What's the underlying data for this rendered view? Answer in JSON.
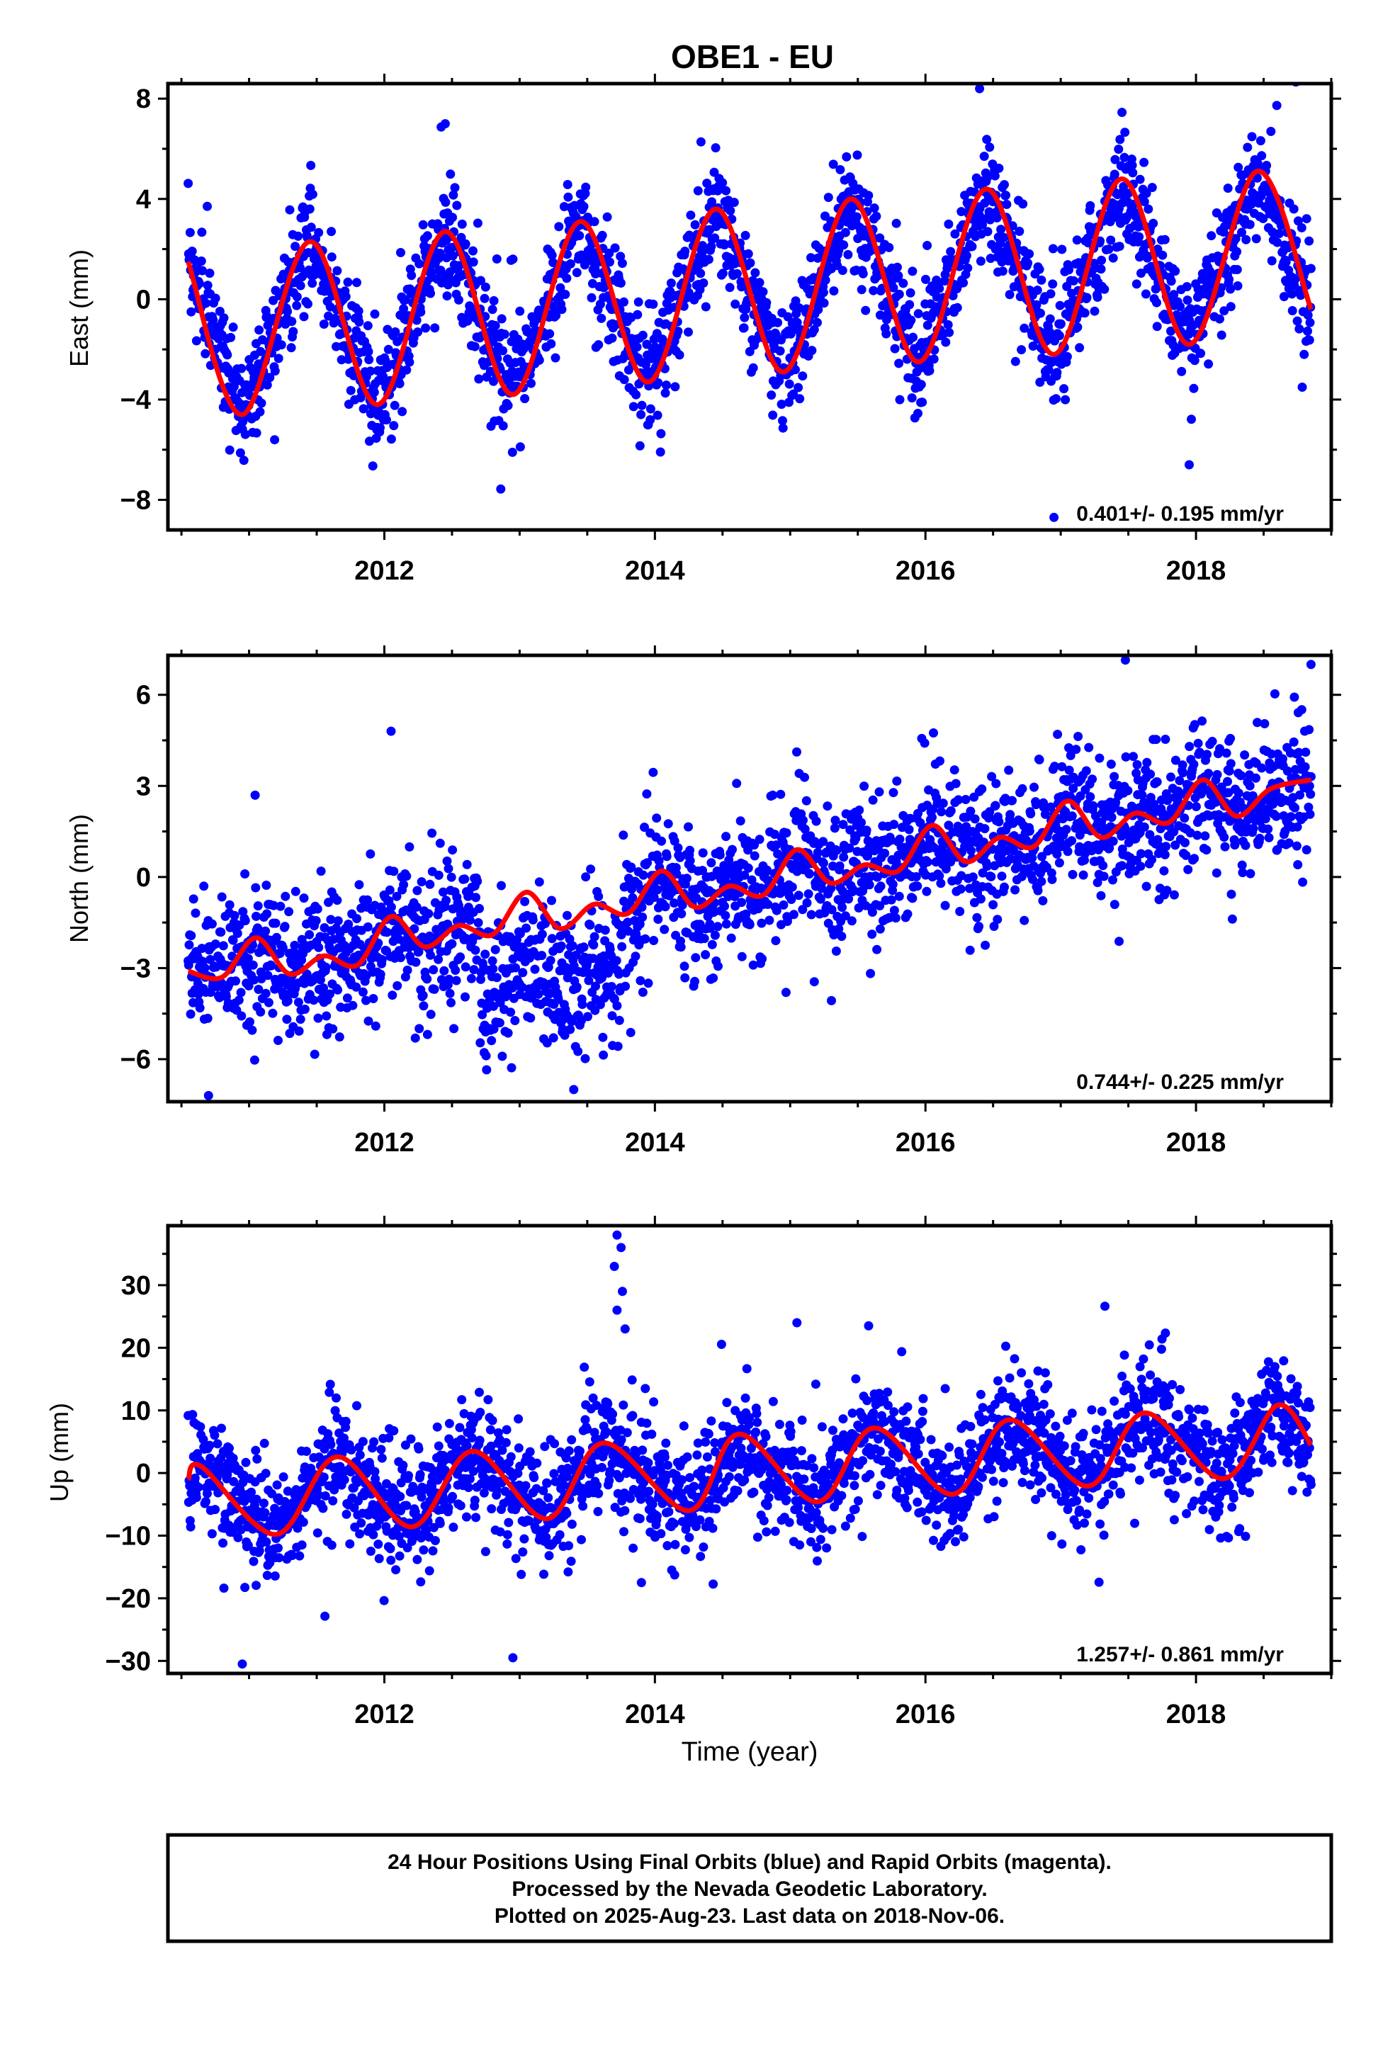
{
  "title": "OBE1 - EU",
  "xlabel": "Time (year)",
  "caption": {
    "line1": "24 Hour Positions Using Final Orbits (blue) and Rapid Orbits (magenta).",
    "line2": "Processed by the Nevada Geodetic Laboratory.",
    "line3": "Plotted on 2025-Aug-23. Last data on 2018-Nov-06."
  },
  "colors": {
    "points": "#0000ff",
    "fit": "#ff0000",
    "frame": "#000000"
  },
  "chart_data": [
    {
      "type": "scatter",
      "ylabel": "East (mm)",
      "xlim": [
        2010.4,
        2019.0
      ],
      "ylim": [
        -9.2,
        8.6
      ],
      "xticks": [
        2012,
        2014,
        2016,
        2018
      ],
      "yticks": [
        -8,
        -4,
        0,
        4,
        8
      ],
      "rate_text": "0.401+/- 0.195 mm/yr",
      "data_range": [
        2010.55,
        2018.85
      ],
      "model": {
        "offset": -1.2,
        "trend_mm_per_yr": 0.401,
        "annual_amp": 3.6,
        "annual_phase": 2011.42,
        "noise": 1.1
      },
      "fit": {
        "x": [
          2010.55,
          2010.95,
          2011.45,
          2011.95,
          2012.45,
          2012.95,
          2013.45,
          2013.95,
          2014.45,
          2014.95,
          2015.45,
          2015.95,
          2016.45,
          2016.95,
          2017.45,
          2017.95,
          2018.45,
          2018.85
        ],
        "y": [
          1.5,
          -4.6,
          2.3,
          -4.2,
          2.7,
          -3.8,
          3.1,
          -3.3,
          3.6,
          -2.9,
          4.0,
          -2.5,
          4.4,
          -2.2,
          4.8,
          -1.8,
          5.1,
          -0.4
        ]
      },
      "outliers": [
        {
          "x": 2016.4,
          "y": 8.4
        },
        {
          "x": 2012.45,
          "y": 7.0
        },
        {
          "x": 2017.95,
          "y": -6.6
        },
        {
          "x": 2016.95,
          "y": -8.7
        }
      ]
    },
    {
      "type": "scatter",
      "ylabel": "North (mm)",
      "xlim": [
        2010.4,
        2019.0
      ],
      "ylim": [
        -7.4,
        7.3
      ],
      "xticks": [
        2012,
        2014,
        2016,
        2018
      ],
      "yticks": [
        -6,
        -3,
        0,
        3,
        6
      ],
      "rate_text": "0.744+/- 0.225 mm/yr",
      "data_range": [
        2010.55,
        2018.85
      ],
      "model": {
        "offset": -2.1,
        "trend_mm_per_yr": 0.744,
        "annual_amp": 0.5,
        "annual_phase": 2011.0,
        "noise": 1.1
      },
      "fit": {
        "x": [
          2010.55,
          2010.8,
          2011.05,
          2011.3,
          2011.55,
          2011.8,
          2012.05,
          2012.3,
          2012.55,
          2012.8,
          2013.05,
          2013.3,
          2013.55,
          2013.8,
          2014.05,
          2014.3,
          2014.55,
          2014.8,
          2015.05,
          2015.3,
          2015.55,
          2015.8,
          2016.05,
          2016.3,
          2016.55,
          2016.8,
          2017.05,
          2017.3,
          2017.55,
          2017.8,
          2018.05,
          2018.3,
          2018.55,
          2018.85
        ],
        "y": [
          -3.1,
          -3.3,
          -2.0,
          -3.2,
          -2.6,
          -2.9,
          -1.3,
          -2.3,
          -1.6,
          -1.9,
          -0.5,
          -1.7,
          -0.9,
          -1.2,
          0.2,
          -1.0,
          -0.3,
          -0.6,
          0.9,
          -0.2,
          0.4,
          0.2,
          1.7,
          0.5,
          1.3,
          1.0,
          2.5,
          1.3,
          2.1,
          1.8,
          3.2,
          2.0,
          2.9,
          3.2
        ]
      },
      "outliers": [
        {
          "x": 2012.05,
          "y": 4.8
        },
        {
          "x": 2018.85,
          "y": 7.0
        },
        {
          "x": 2010.7,
          "y": -7.2
        },
        {
          "x": 2013.4,
          "y": -7.0
        }
      ]
    },
    {
      "type": "scatter",
      "ylabel": "Up (mm)",
      "xlim": [
        2010.4,
        2019.0
      ],
      "ylim": [
        -32,
        39.5
      ],
      "xticks": [
        2012,
        2014,
        2016,
        2018
      ],
      "yticks": [
        -30,
        -20,
        -10,
        0,
        10,
        20,
        30
      ],
      "rate_text": "1.257+/- 0.861 mm/yr",
      "data_range": [
        2010.55,
        2018.85
      ],
      "model": {
        "offset": -4.5,
        "trend_mm_per_yr": 1.257,
        "annual_amp": 5.5,
        "annual_phase": 2011.35,
        "noise": 4.5
      },
      "fit": {
        "x": [
          2010.55,
          2010.65,
          2011.2,
          2011.65,
          2012.2,
          2012.65,
          2013.2,
          2013.62,
          2014.25,
          2014.62,
          2015.2,
          2015.62,
          2016.2,
          2016.62,
          2017.2,
          2017.62,
          2018.2,
          2018.6,
          2018.85
        ],
        "y": [
          -1.0,
          1.0,
          -9.8,
          2.6,
          -8.6,
          3.5,
          -7.3,
          4.8,
          -6.0,
          6.2,
          -4.6,
          7.2,
          -3.4,
          8.5,
          -2.1,
          9.6,
          -0.9,
          10.8,
          4.5
        ]
      },
      "outliers": [
        {
          "x": 2013.72,
          "y": 38.0
        },
        {
          "x": 2013.75,
          "y": 36.0
        },
        {
          "x": 2013.7,
          "y": 33.0
        },
        {
          "x": 2013.76,
          "y": 29.0
        },
        {
          "x": 2013.72,
          "y": 26.0
        },
        {
          "x": 2013.78,
          "y": 23.0
        },
        {
          "x": 2015.05,
          "y": 24.0
        },
        {
          "x": 2015.58,
          "y": 23.5
        },
        {
          "x": 2010.95,
          "y": -30.5
        },
        {
          "x": 2012.95,
          "y": -29.5
        },
        {
          "x": 2013.9,
          "y": -17.5
        }
      ]
    }
  ]
}
